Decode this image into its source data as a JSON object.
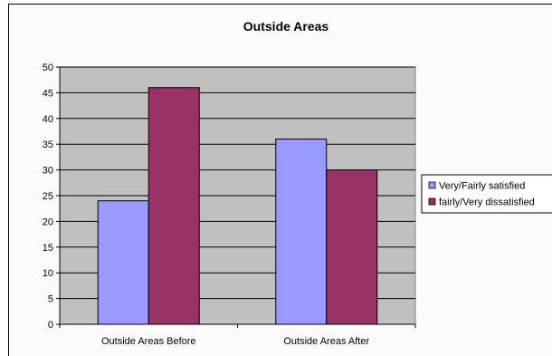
{
  "chart_data": {
    "type": "bar",
    "title": "Outside Areas",
    "xlabel": "",
    "ylabel": "",
    "categories": [
      "Outside Areas Before",
      "Outside Areas After"
    ],
    "series": [
      {
        "name": "Very/Fairly satisfied",
        "values": [
          24,
          36
        ]
      },
      {
        "name": "fairly/Very dissatisfied",
        "values": [
          46,
          30
        ]
      }
    ],
    "ylim": [
      0,
      50
    ],
    "yticks": [
      "0",
      "5",
      "10",
      "15",
      "20",
      "25",
      "30",
      "35",
      "40",
      "45",
      "50"
    ],
    "grid": true,
    "legend_position": "right"
  },
  "colors": {
    "series_1": "#9999ff",
    "series_2": "#993366",
    "plot_background": "#c0c0c0"
  }
}
